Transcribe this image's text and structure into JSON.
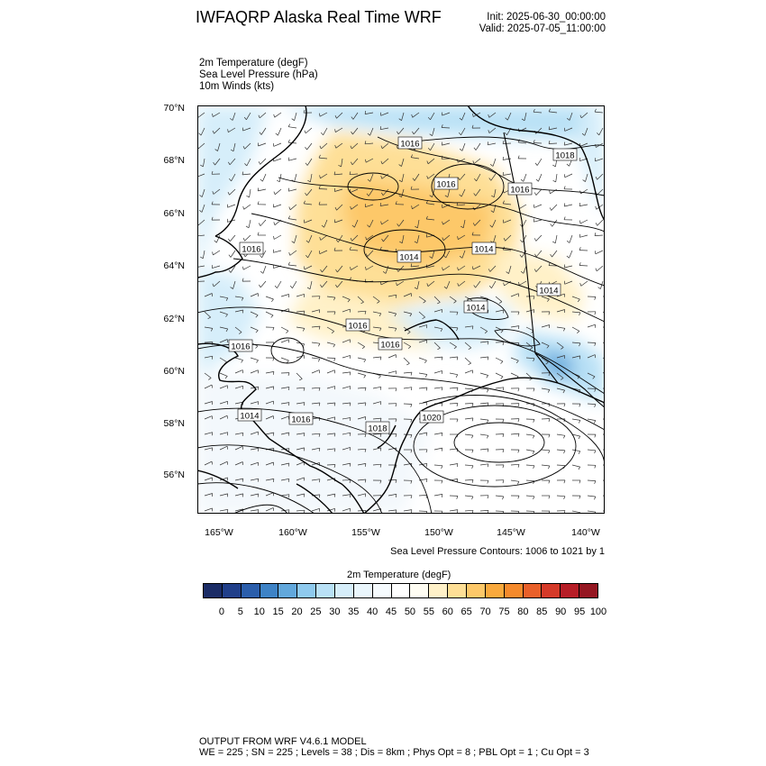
{
  "title": "IWFAQRP Alaska Real Time WRF",
  "init": "Init: 2025-06-30_00:00:00",
  "valid": "Valid: 2025-07-05_11:00:00",
  "fields": [
    "2m Temperature   (degF)",
    "Sea Level Pressure   (hPa)",
    "10m Winds   (kts)"
  ],
  "lat_labels": [
    "70°N",
    "68°N",
    "66°N",
    "64°N",
    "62°N",
    "60°N",
    "58°N",
    "56°N"
  ],
  "lon_labels": [
    "165°W",
    "160°W",
    "155°W",
    "150°W",
    "145°W",
    "140°W"
  ],
  "contour_note": "Sea Level Pressure Contours: 1006 to 1021 by 1",
  "isobar_labels": [
    "1016",
    "1018",
    "1016",
    "1016",
    "1016",
    "1014",
    "1014",
    "1014",
    "1014",
    "1016",
    "1016",
    "1016",
    "1014",
    "1016",
    "1018",
    "1020"
  ],
  "colorbar": {
    "title": "2m Temperature  (degF)",
    "ticks": [
      "0",
      "5",
      "10",
      "15",
      "20",
      "25",
      "30",
      "35",
      "40",
      "45",
      "50",
      "55",
      "60",
      "65",
      "70",
      "75",
      "80",
      "85",
      "90",
      "95",
      "100"
    ],
    "colors": [
      "#1b2c66",
      "#213f8a",
      "#2b5eab",
      "#3e83c6",
      "#62a8dc",
      "#8fcaee",
      "#b9e1f6",
      "#d6eefa",
      "#eaf6fc",
      "#f6fbfe",
      "#ffffff",
      "#fffdf3",
      "#fff1c8",
      "#fedf96",
      "#fdc869",
      "#f9a93d",
      "#f58a2c",
      "#e9602a",
      "#d53a29",
      "#b71e27",
      "#951722"
    ]
  },
  "footer": [
    "OUTPUT FROM WRF V4.6.1 MODEL",
    "WE = 225 ; SN = 225 ; Levels = 38 ; Dis = 8km ; Phys Opt = 8 ; PBL Opt = 1 ; Cu Opt = 3"
  ]
}
